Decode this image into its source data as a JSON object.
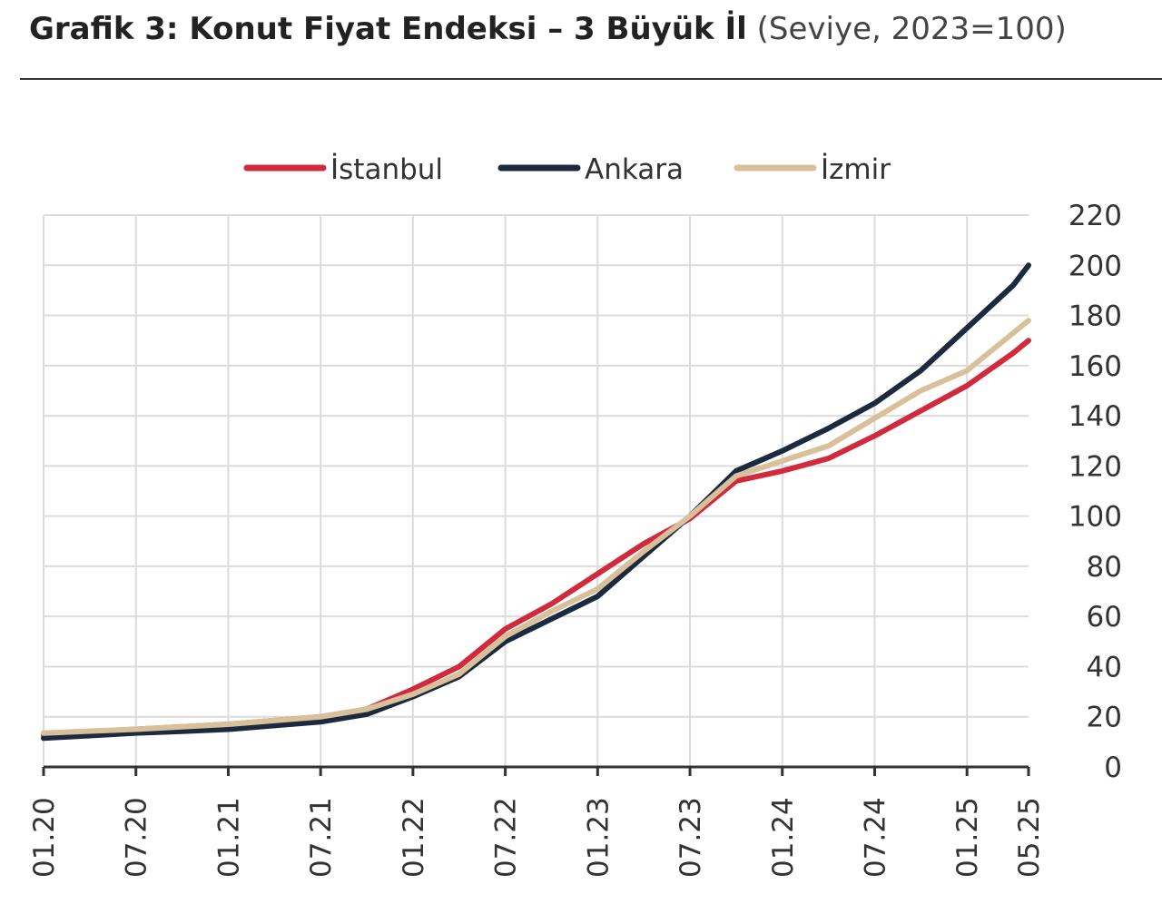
{
  "header": {
    "title": "Grafik 3: Konut Fiyat Endeksi – 3 Büyük İl",
    "subtitle": "(Seviye, 2023=100)"
  },
  "chart_data": {
    "type": "line",
    "title": "Grafik 3: Konut Fiyat Endeksi – 3 Büyük İl",
    "subtitle": "(Seviye, 2023=100)",
    "xlabel": "",
    "ylabel": "",
    "ylim": [
      0,
      220
    ],
    "yticks": [
      0,
      20,
      40,
      60,
      80,
      100,
      120,
      140,
      160,
      180,
      200,
      220
    ],
    "xticks": [
      "01.20",
      "07.20",
      "01.21",
      "07.21",
      "01.22",
      "07.22",
      "01.23",
      "07.23",
      "01.24",
      "07.24",
      "01.25",
      "05.25"
    ],
    "grid": true,
    "legend": "top",
    "y_axis_side": "right",
    "x": [
      "01.20",
      "04.20",
      "07.20",
      "10.20",
      "01.21",
      "04.21",
      "07.21",
      "10.21",
      "01.22",
      "04.22",
      "07.22",
      "10.22",
      "01.23",
      "04.23",
      "07.23",
      "10.23",
      "01.24",
      "04.24",
      "07.24",
      "10.24",
      "01.25",
      "04.25",
      "05.25"
    ],
    "series": [
      {
        "name": "İstanbul",
        "color": "#d12a3c",
        "values": [
          12.7,
          14,
          15,
          16,
          17,
          18.5,
          20,
          23,
          31,
          40,
          55,
          65,
          77,
          89,
          99,
          114,
          118,
          123,
          132,
          142,
          152,
          165,
          170
        ]
      },
      {
        "name": "Ankara",
        "color": "#1b2a3f",
        "values": [
          11.5,
          12.5,
          13.5,
          14.2,
          15,
          16.5,
          18,
          21,
          28,
          36,
          50,
          59,
          68,
          84,
          100,
          118,
          126,
          135,
          145,
          158,
          175,
          192,
          200
        ]
      },
      {
        "name": "İzmir",
        "color": "#d8c09a",
        "values": [
          13.5,
          14.3,
          15,
          16,
          17,
          18.5,
          20,
          23,
          29,
          37,
          52,
          62,
          71,
          86,
          100,
          116,
          122,
          128,
          139,
          150,
          158,
          173,
          178
        ]
      }
    ]
  }
}
